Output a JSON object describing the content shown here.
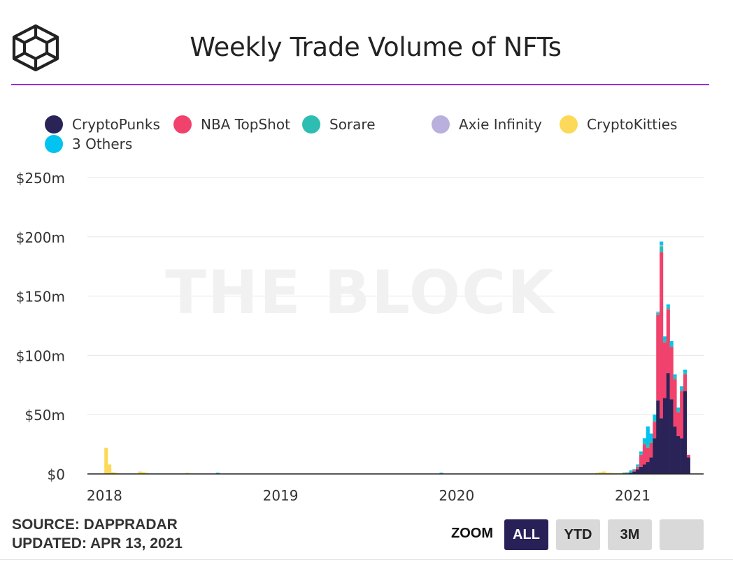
{
  "title": "Weekly Trade Volume of NFTs",
  "logo_icon": "the-block-cube-logo",
  "watermark": "THE BLOCK",
  "source_line": "SOURCE: DAPPRADAR",
  "updated_line": "UPDATED: APR 13, 2021",
  "zoom": {
    "label": "ZOOM",
    "buttons": [
      {
        "label": "ALL",
        "active": true
      },
      {
        "label": "YTD",
        "active": false
      },
      {
        "label": "3M",
        "active": false
      },
      {
        "label": "",
        "active": false
      }
    ]
  },
  "colors": {
    "accent_rule": "#9b30d9",
    "active_button": "#272158",
    "gridline": "#e6e6e6"
  },
  "chart_data": {
    "type": "bar",
    "stacked": true,
    "title": "Weekly Trade Volume of NFTs",
    "xlabel": "",
    "ylabel": "",
    "ylim": [
      0,
      250
    ],
    "y_unit": "$m",
    "y_ticks": [
      "$0",
      "$50m",
      "$100m",
      "$150m",
      "$200m",
      "$250m"
    ],
    "y_tick_values": [
      0,
      50,
      100,
      150,
      200,
      250
    ],
    "x_ticks": [
      "2018",
      "2019",
      "2020",
      "2021"
    ],
    "x_tick_weeks": [
      4,
      56,
      108,
      160
    ],
    "x_range_weeks": [
      0,
      182
    ],
    "grid": true,
    "legend_position": "top-left",
    "series": [
      {
        "name": "CryptoPunks",
        "color": "#2a2358"
      },
      {
        "name": "NBA TopShot",
        "color": "#f0426c"
      },
      {
        "name": "Sorare",
        "color": "#2ebdb2"
      },
      {
        "name": "Axie Infinity",
        "color": "#b9b0de"
      },
      {
        "name": "CryptoKitties",
        "color": "#fcd958"
      },
      {
        "name": "3 Others",
        "color": "#00c3ef"
      }
    ],
    "weeks": [
      {
        "week": 5,
        "CryptoKitties": 22
      },
      {
        "week": 6,
        "CryptoKitties": 8
      },
      {
        "week": 7,
        "CryptoKitties": 1.5
      },
      {
        "week": 8,
        "CryptoKitties": 1
      },
      {
        "week": 15,
        "CryptoKitties": 2
      },
      {
        "week": 16,
        "CryptoKitties": 1.5
      },
      {
        "week": 17,
        "CryptoKitties": 1
      },
      {
        "week": 29,
        "CryptoKitties": 1
      },
      {
        "week": 38,
        "3 Others": 1
      },
      {
        "week": 104,
        "3 Others": 1
      },
      {
        "week": 150,
        "CryptoKitties": 1
      },
      {
        "week": 151,
        "CryptoKitties": 1.5
      },
      {
        "week": 152,
        "CryptoKitties": 2
      },
      {
        "week": 153,
        "CryptoKitties": 1
      },
      {
        "week": 154,
        "CryptoKitties": 1
      },
      {
        "week": 155,
        "CryptoKitties": 0.5
      },
      {
        "week": 156,
        "CryptoKitties": 0.5
      },
      {
        "week": 157,
        "CryptoKitties": 0.5
      },
      {
        "week": 158,
        "Sorare": 1,
        "CryptoKitties": 0.5
      },
      {
        "week": 159,
        "Sorare": 1,
        "Axie Infinity": 0.5
      },
      {
        "week": 160,
        "CryptoPunks": 1,
        "Sorare": 1,
        "3 Others": 1
      },
      {
        "week": 161,
        "CryptoPunks": 2,
        "NBA TopShot": 1,
        "Sorare": 1
      },
      {
        "week": 162,
        "CryptoPunks": 4,
        "NBA TopShot": 2,
        "Sorare": 1,
        "3 Others": 1
      },
      {
        "week": 163,
        "CryptoPunks": 6,
        "NBA TopShot": 10,
        "Sorare": 1,
        "3 Others": 2
      },
      {
        "week": 164,
        "CryptoPunks": 8,
        "NBA TopShot": 17,
        "Sorare": 2,
        "3 Others": 3
      },
      {
        "week": 165,
        "CryptoPunks": 10,
        "NBA TopShot": 12,
        "Sorare": 2,
        "3 Others": 16
      },
      {
        "week": 166,
        "CryptoPunks": 14,
        "NBA TopShot": 12,
        "Sorare": 2,
        "3 Others": 6
      },
      {
        "week": 167,
        "CryptoPunks": 30,
        "NBA TopShot": 14,
        "Sorare": 2,
        "3 Others": 4
      },
      {
        "week": 168,
        "CryptoPunks": 62,
        "NBA TopShot": 72,
        "Sorare": 2,
        "Axie Infinity": 1
      },
      {
        "week": 169,
        "CryptoPunks": 47,
        "NBA TopShot": 140,
        "Sorare": 5,
        "Axie Infinity": 1,
        "3 Others": 3
      },
      {
        "week": 170,
        "CryptoPunks": 64,
        "NBA TopShot": 47,
        "Sorare": 2,
        "3 Others": 3
      },
      {
        "week": 171,
        "CryptoPunks": 85,
        "NBA TopShot": 54,
        "Sorare": 2,
        "3 Others": 2
      },
      {
        "week": 172,
        "CryptoPunks": 63,
        "NBA TopShot": 44,
        "Sorare": 2,
        "3 Others": 3
      },
      {
        "week": 173,
        "CryptoPunks": 40,
        "NBA TopShot": 40,
        "Sorare": 2,
        "3 Others": 2
      },
      {
        "week": 174,
        "CryptoPunks": 32,
        "NBA TopShot": 20,
        "Sorare": 2,
        "3 Others": 2
      },
      {
        "week": 175,
        "CryptoPunks": 30,
        "NBA TopShot": 40,
        "Sorare": 2,
        "3 Others": 2
      },
      {
        "week": 176,
        "CryptoPunks": 70,
        "NBA TopShot": 14,
        "Sorare": 2,
        "3 Others": 2
      },
      {
        "week": 177,
        "CryptoPunks": 14,
        "NBA TopShot": 2
      }
    ]
  }
}
